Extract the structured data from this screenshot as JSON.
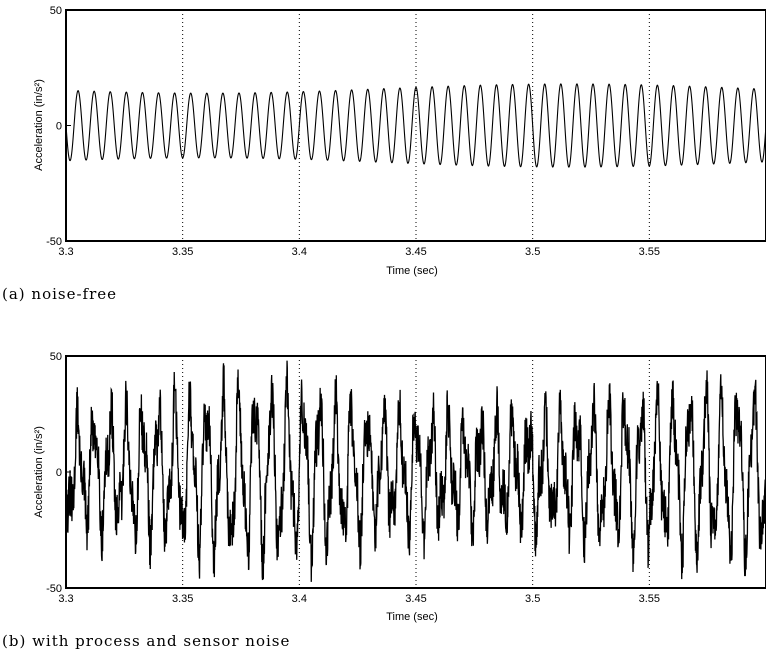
{
  "chart_data": [
    {
      "type": "line",
      "caption": "(a) noise-free",
      "xlabel": "Time (sec)",
      "ylabel": "Acceleration (in/s²)",
      "xlim": [
        3.3,
        3.6
      ],
      "ylim": [
        -50,
        50
      ],
      "xticks": [
        "3.3",
        "3.35",
        "3.4",
        "3.45",
        "3.5",
        "3.55"
      ],
      "yticks": [
        "-50",
        "0",
        "50"
      ],
      "grid": "vertical dotted at x ticks",
      "series": [
        {
          "signal": "sinusoid",
          "frequency_hz": 145,
          "amplitude_range": [
            14,
            18
          ],
          "x_range": [
            3.3,
            3.6
          ]
        }
      ]
    },
    {
      "type": "line",
      "caption": "(b) with process and sensor noise",
      "xlabel": "Time (sec)",
      "ylabel": "Acceleration (in/s²)",
      "xlim": [
        3.3,
        3.6
      ],
      "ylim": [
        -50,
        50
      ],
      "xticks": [
        "3.3",
        "3.35",
        "3.4",
        "3.45",
        "3.5",
        "3.55"
      ],
      "yticks": [
        "-50",
        "0",
        "50"
      ],
      "grid": "vertical dotted at x ticks",
      "series": [
        {
          "signal": "noisy sinusoid",
          "frequency_hz": 145,
          "amplitude_range": [
            15,
            40
          ],
          "x_range": [
            3.3,
            3.6
          ]
        }
      ]
    }
  ]
}
